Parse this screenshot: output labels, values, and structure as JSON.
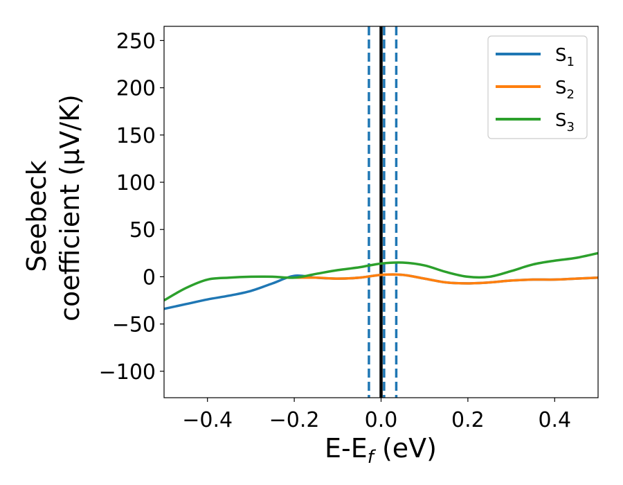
{
  "chart_data": {
    "type": "line",
    "xlabel": "E-E_f (eV)",
    "ylabel_line1": "Seebeck",
    "ylabel_line2": "coefficient  (μV/K)",
    "xlim": [
      -0.5,
      0.5
    ],
    "ylim": [
      -128,
      265
    ],
    "xticks": [
      -0.4,
      -0.2,
      0.0,
      0.2,
      0.4
    ],
    "xtick_labels": [
      "−0.4",
      "−0.2",
      "0.0",
      "0.2",
      "0.4"
    ],
    "yticks": [
      -100,
      -50,
      0,
      50,
      100,
      150,
      200,
      250
    ],
    "ytick_labels": [
      "−100",
      "−50",
      "0",
      "50",
      "100",
      "150",
      "200",
      "250"
    ],
    "grid": false,
    "legend_position": "top-right",
    "vertical_lines": [
      {
        "x": 0.0,
        "style": "solid",
        "color": "#000000"
      },
      {
        "x": -0.028,
        "style": "dashed",
        "color": "#1f77b4"
      },
      {
        "x": 0.007,
        "style": "dashed",
        "color": "#1f77b4"
      },
      {
        "x": 0.035,
        "style": "dashed",
        "color": "#1f77b4"
      }
    ],
    "series": [
      {
        "name": "S_1",
        "color": "#1f77b4",
        "x": [
          -0.5,
          -0.45,
          -0.4,
          -0.35,
          -0.3,
          -0.25,
          -0.2,
          -0.15,
          -0.1,
          -0.05,
          0.0,
          0.05,
          0.1,
          0.15,
          0.2,
          0.25,
          0.3,
          0.35,
          0.4,
          0.45,
          0.5
        ],
        "y": [
          -34,
          -29,
          -24,
          -20,
          -15,
          -7,
          1,
          -1,
          -2,
          -1,
          2,
          2,
          -2,
          -6,
          -7,
          -6,
          -4,
          -3,
          -3,
          -2,
          -1
        ]
      },
      {
        "name": "S_2",
        "color": "#ff7f0e",
        "x": [
          -0.2,
          -0.15,
          -0.1,
          -0.05,
          0.0,
          0.05,
          0.1,
          0.15,
          0.2,
          0.25,
          0.3,
          0.35,
          0.4,
          0.45,
          0.5
        ],
        "y": [
          -1,
          -1,
          -2,
          -1,
          2,
          2,
          -2,
          -6,
          -7,
          -6,
          -4,
          -3,
          -3,
          -2,
          -1
        ]
      },
      {
        "name": "S_3",
        "color": "#2ca02c",
        "x": [
          -0.5,
          -0.45,
          -0.4,
          -0.35,
          -0.3,
          -0.25,
          -0.2,
          -0.15,
          -0.1,
          -0.05,
          0.0,
          0.05,
          0.1,
          0.15,
          0.2,
          0.25,
          0.3,
          0.35,
          0.4,
          0.45,
          0.5
        ],
        "y": [
          -25,
          -12,
          -3,
          -1,
          0,
          0,
          -1,
          3,
          7,
          10,
          14,
          15,
          12,
          5,
          0,
          0,
          6,
          13,
          17,
          20,
          25
        ]
      }
    ]
  }
}
